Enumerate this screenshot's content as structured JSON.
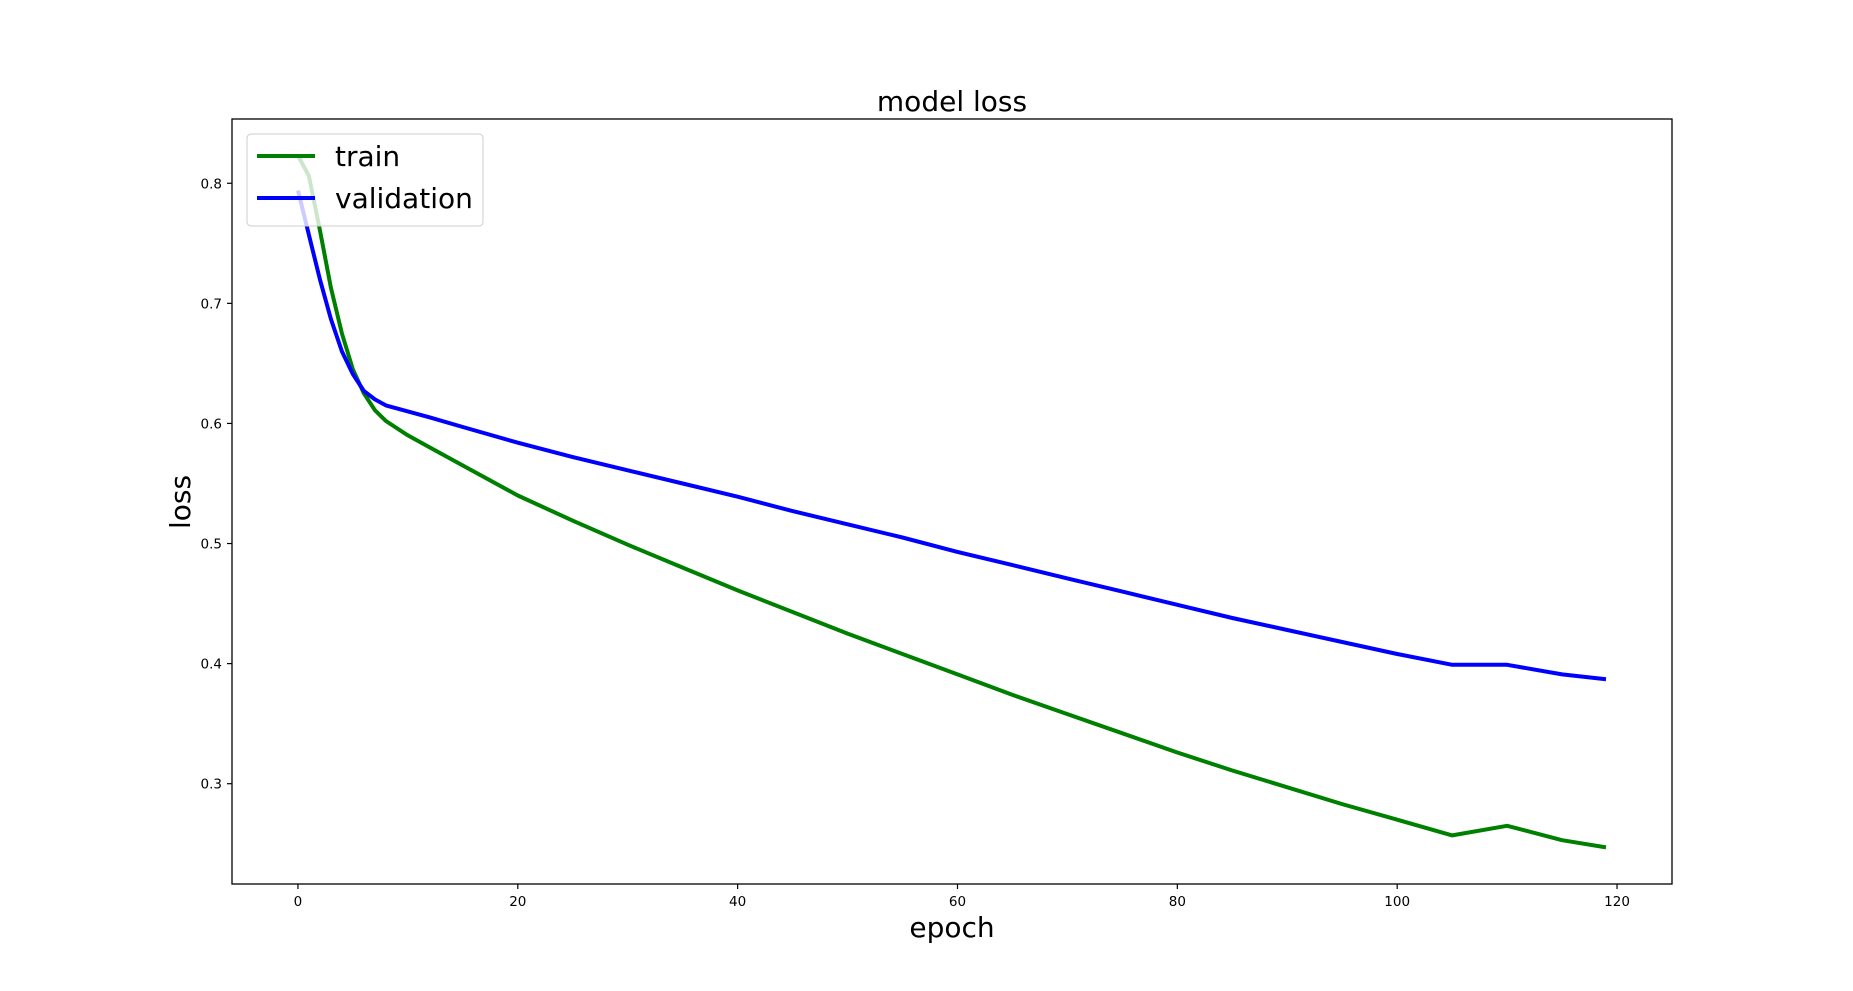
{
  "chart_data": {
    "type": "line",
    "title": "model loss",
    "xlabel": "epoch",
    "ylabel": "loss",
    "xlim": [
      -6,
      125
    ],
    "ylim": [
      0.2165,
      0.8535
    ],
    "xticks": [
      0,
      20,
      40,
      60,
      80,
      100,
      120
    ],
    "yticks": [
      0.3,
      0.4,
      0.5,
      0.6,
      0.7,
      0.8
    ],
    "grid": false,
    "legend_position": "top-left",
    "series": [
      {
        "name": "train",
        "color": "#008000",
        "x": [
          0,
          1,
          2,
          3,
          4,
          5,
          6,
          7,
          8,
          10,
          12,
          15,
          20,
          25,
          30,
          35,
          40,
          45,
          50,
          55,
          60,
          65,
          70,
          75,
          80,
          85,
          90,
          95,
          100,
          105,
          110,
          115,
          119
        ],
        "values": [
          0.823,
          0.806,
          0.761,
          0.713,
          0.675,
          0.645,
          0.625,
          0.611,
          0.602,
          0.59,
          0.58,
          0.565,
          0.54,
          0.519,
          0.499,
          0.48,
          0.461,
          0.443,
          0.425,
          0.408,
          0.391,
          0.374,
          0.358,
          0.342,
          0.326,
          0.311,
          0.297,
          0.283,
          0.27,
          0.257,
          0.265,
          0.253,
          0.247
        ]
      },
      {
        "name": "validation",
        "color": "#0000ff",
        "x": [
          0,
          1,
          2,
          3,
          4,
          5,
          6,
          7,
          8,
          10,
          12,
          15,
          20,
          25,
          30,
          35,
          40,
          45,
          50,
          55,
          60,
          65,
          70,
          75,
          80,
          85,
          90,
          95,
          100,
          105,
          110,
          115,
          119
        ],
        "values": [
          0.794,
          0.757,
          0.72,
          0.687,
          0.66,
          0.641,
          0.627,
          0.62,
          0.615,
          0.61,
          0.605,
          0.597,
          0.584,
          0.572,
          0.561,
          0.55,
          0.539,
          0.527,
          0.516,
          0.505,
          0.493,
          0.482,
          0.471,
          0.46,
          0.449,
          0.438,
          0.428,
          0.418,
          0.408,
          0.399,
          0.399,
          0.391,
          0.387
        ]
      }
    ]
  }
}
